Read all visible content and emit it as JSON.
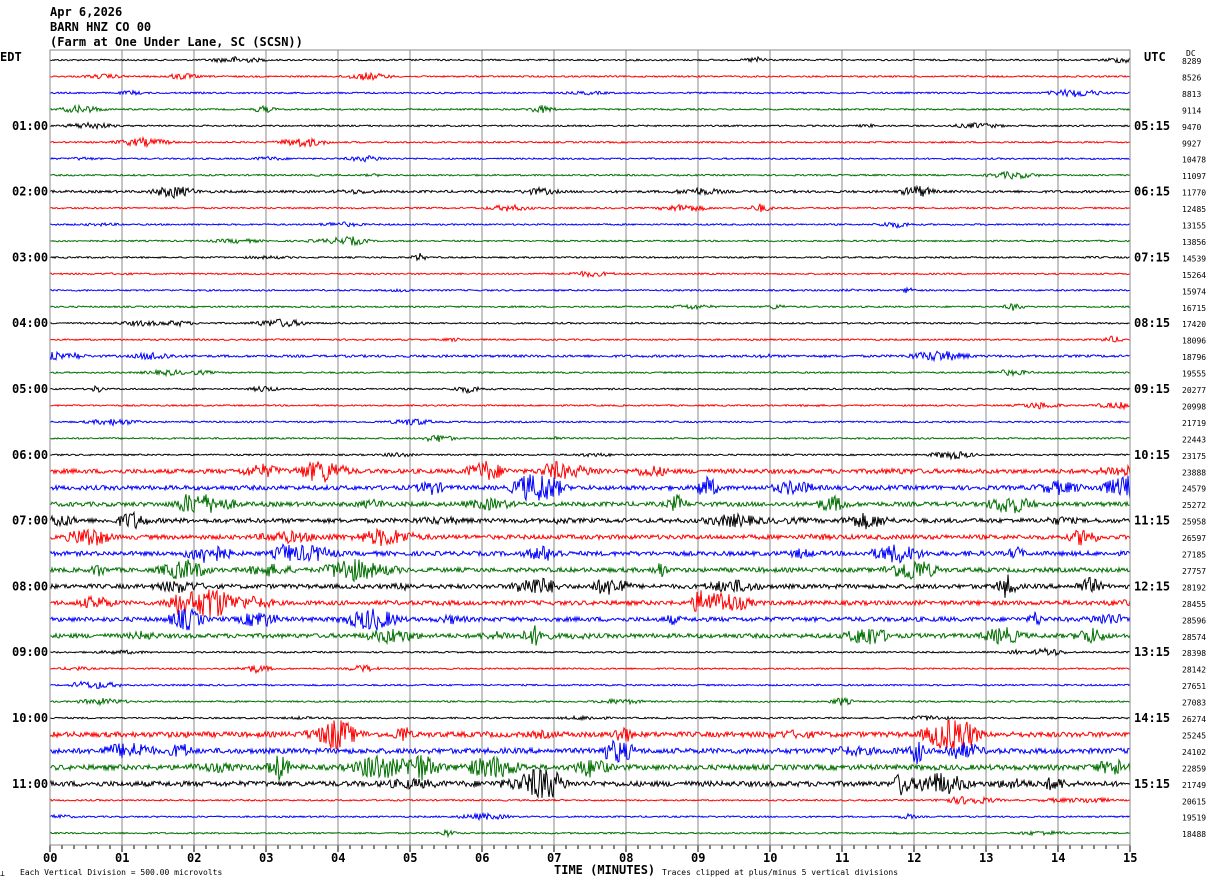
{
  "header": {
    "date": "Apr 6,2026",
    "station": "BARN HNZ CO 00",
    "location": "(Farm at One Under Lane, SC (SCSN))"
  },
  "chart_data": {
    "type": "line",
    "title": "Apr 6,2026",
    "xlabel": "TIME (MINUTES)",
    "left_axis_label": "EDT",
    "right_axis_label": "UTC",
    "dc_label": "DC",
    "xlim": [
      0,
      15
    ],
    "x_ticks": [
      "00",
      "01",
      "02",
      "03",
      "04",
      "05",
      "06",
      "07",
      "08",
      "09",
      "10",
      "11",
      "12",
      "13",
      "14",
      "15"
    ],
    "left_hour_labels": [
      "01:00",
      "02:00",
      "03:00",
      "04:00",
      "05:00",
      "06:00",
      "07:00",
      "08:00",
      "09:00",
      "10:00",
      "11:00"
    ],
    "right_hour_labels": [
      "05:15",
      "06:15",
      "07:15",
      "08:15",
      "09:15",
      "10:15",
      "11:15",
      "12:15",
      "13:15",
      "14:15",
      "15:15"
    ],
    "trace_colors": [
      "#000000",
      "#ff0000",
      "#0000ff",
      "#007000"
    ],
    "dc_offsets": [
      "8289",
      "8526",
      "8813",
      "9114",
      "9470",
      "9927",
      "10478",
      "11097",
      "11770",
      "12485",
      "13155",
      "13856",
      "14539",
      "15264",
      "15974",
      "16715",
      "17420",
      "18096",
      "18796",
      "19555",
      "20277",
      "20998",
      "21719",
      "22443",
      "23175",
      "23888",
      "24579",
      "25272",
      "25958",
      "26597",
      "27185",
      "27757",
      "28192",
      "28455",
      "28596",
      "28574",
      "28398",
      "28142",
      "27651",
      "27083",
      "26274",
      "25245",
      "24102",
      "22859",
      "21749",
      "20615",
      "19519",
      "18488"
    ],
    "grid": true,
    "scale_note": "Each Vertical Division =  500.00 microvolts",
    "clip_note": "Traces clipped at plus/minus 5 vertical divisions"
  }
}
